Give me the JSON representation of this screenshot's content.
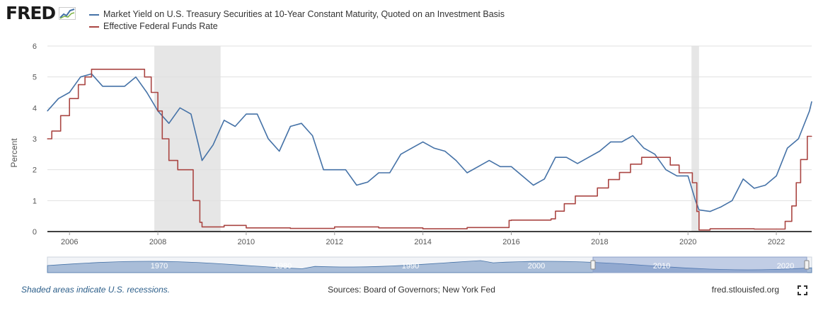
{
  "logo": {
    "text": "FRED",
    "icon": "graph-line-icon"
  },
  "chart_data": {
    "type": "line",
    "title": "",
    "ylabel": "Percent",
    "xlabel": "",
    "ylim": [
      0,
      6
    ],
    "xlim": [
      2005.5,
      2022.8
    ],
    "y_ticks": [
      0,
      1,
      2,
      3,
      4,
      5,
      6
    ],
    "x_ticks": [
      2006,
      2008,
      2010,
      2012,
      2014,
      2016,
      2018,
      2020,
      2022
    ],
    "x_tick_labels": [
      "2006",
      "2008",
      "2010",
      "2012",
      "2014",
      "2016",
      "2018",
      "2020",
      "2022"
    ],
    "grid": "horizontal",
    "legend_position": "top-left",
    "recessions": [
      [
        2007.92,
        2009.42
      ],
      [
        2020.08,
        2020.25
      ]
    ],
    "series": [
      {
        "name": "Market Yield on U.S. Treasury Securities at 10-Year Constant Maturity, Quoted on an Investment Basis",
        "color": "#4572a7",
        "x": [
          2005.5,
          2005.75,
          2006.0,
          2006.25,
          2006.5,
          2006.75,
          2007.0,
          2007.25,
          2007.5,
          2007.75,
          2008.0,
          2008.25,
          2008.5,
          2008.75,
          2008.92,
          2009.0,
          2009.25,
          2009.5,
          2009.75,
          2010.0,
          2010.25,
          2010.5,
          2010.75,
          2011.0,
          2011.25,
          2011.5,
          2011.75,
          2012.0,
          2012.25,
          2012.5,
          2012.75,
          2013.0,
          2013.25,
          2013.5,
          2013.75,
          2014.0,
          2014.25,
          2014.5,
          2014.75,
          2015.0,
          2015.25,
          2015.5,
          2015.75,
          2016.0,
          2016.25,
          2016.5,
          2016.75,
          2017.0,
          2017.25,
          2017.5,
          2017.75,
          2018.0,
          2018.25,
          2018.5,
          2018.75,
          2019.0,
          2019.25,
          2019.5,
          2019.75,
          2020.0,
          2020.17,
          2020.25,
          2020.5,
          2020.75,
          2021.0,
          2021.25,
          2021.5,
          2021.75,
          2022.0,
          2022.25,
          2022.5,
          2022.75,
          2022.8
        ],
        "y": [
          3.9,
          4.3,
          4.5,
          5.0,
          5.1,
          4.7,
          4.7,
          4.7,
          5.0,
          4.5,
          3.9,
          3.5,
          4.0,
          3.8,
          2.8,
          2.3,
          2.8,
          3.6,
          3.4,
          3.8,
          3.8,
          3.0,
          2.6,
          3.4,
          3.5,
          3.1,
          2.0,
          2.0,
          2.0,
          1.5,
          1.6,
          1.9,
          1.9,
          2.5,
          2.7,
          2.9,
          2.7,
          2.6,
          2.3,
          1.9,
          2.1,
          2.3,
          2.1,
          2.1,
          1.8,
          1.5,
          1.7,
          2.4,
          2.4,
          2.2,
          2.4,
          2.6,
          2.9,
          2.9,
          3.1,
          2.7,
          2.5,
          2.0,
          1.8,
          1.8,
          1.0,
          0.7,
          0.65,
          0.8,
          1.0,
          1.7,
          1.4,
          1.5,
          1.8,
          2.7,
          3.0,
          3.9,
          4.2
        ]
      },
      {
        "name": "Effective Federal Funds Rate",
        "color": "#aa4643",
        "x": [
          2005.5,
          2005.6,
          2005.8,
          2006.0,
          2006.2,
          2006.35,
          2006.5,
          2007.0,
          2007.5,
          2007.7,
          2007.85,
          2008.0,
          2008.1,
          2008.25,
          2008.45,
          2008.7,
          2008.8,
          2008.95,
          2009.0,
          2009.5,
          2010.0,
          2011.0,
          2012.0,
          2013.0,
          2014.0,
          2015.0,
          2015.95,
          2016.0,
          2016.9,
          2017.0,
          2017.2,
          2017.45,
          2017.95,
          2018.2,
          2018.45,
          2018.7,
          2018.95,
          2019.5,
          2019.6,
          2019.8,
          2020.1,
          2020.2,
          2020.25,
          2020.5,
          2021.0,
          2021.5,
          2022.0,
          2022.2,
          2022.35,
          2022.45,
          2022.55,
          2022.7,
          2022.8
        ],
        "y": [
          3.0,
          3.25,
          3.75,
          4.3,
          4.75,
          5.0,
          5.25,
          5.25,
          5.25,
          5.0,
          4.5,
          3.9,
          3.0,
          2.3,
          2.0,
          2.0,
          1.0,
          0.3,
          0.15,
          0.2,
          0.12,
          0.1,
          0.15,
          0.12,
          0.09,
          0.13,
          0.36,
          0.37,
          0.41,
          0.66,
          0.9,
          1.15,
          1.41,
          1.68,
          1.91,
          2.18,
          2.4,
          2.4,
          2.15,
          1.9,
          1.58,
          0.65,
          0.05,
          0.09,
          0.09,
          0.08,
          0.08,
          0.33,
          0.83,
          1.58,
          2.33,
          3.08,
          3.08
        ]
      }
    ]
  },
  "navigator": {
    "labels": [
      "1970",
      "1980",
      "1990",
      "2000",
      "2010",
      "2020"
    ]
  },
  "footer": {
    "note": "Shaded areas indicate U.S. recessions.",
    "sources": "Sources: Board of Governors; New York Fed",
    "site": "fred.stlouisfed.org"
  }
}
